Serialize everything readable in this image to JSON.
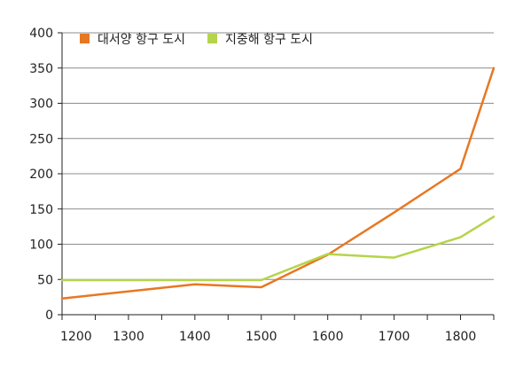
{
  "chart_data": {
    "type": "line",
    "title": "",
    "xlabel": "",
    "ylabel": "",
    "xlim": [
      1200,
      1850
    ],
    "ylim": [
      0,
      400
    ],
    "x_ticks": [
      1200,
      1300,
      1400,
      1500,
      1600,
      1700,
      1800
    ],
    "y_ticks": [
      0,
      50,
      100,
      150,
      200,
      250,
      300,
      350,
      400
    ],
    "grid": true,
    "legend_position": "top-left",
    "series": [
      {
        "name": "대서양 항구 도시",
        "color": "#e87722",
        "points": [
          [
            1200,
            23
          ],
          [
            1400,
            43
          ],
          [
            1500,
            39
          ],
          [
            1600,
            85
          ],
          [
            1700,
            145
          ],
          [
            1800,
            207
          ],
          [
            1850,
            350
          ]
        ]
      },
      {
        "name": "지중해 항구 도시",
        "color": "#b5d44b",
        "points": [
          [
            1200,
            49
          ],
          [
            1300,
            49
          ],
          [
            1400,
            49
          ],
          [
            1500,
            49
          ],
          [
            1600,
            86
          ],
          [
            1700,
            81
          ],
          [
            1800,
            110
          ],
          [
            1850,
            139
          ]
        ]
      }
    ]
  }
}
